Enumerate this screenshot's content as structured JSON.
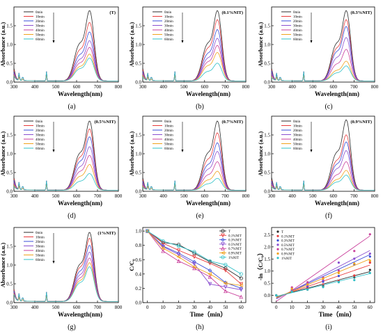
{
  "series_colors": [
    "#2b2b2b",
    "#e8393a",
    "#3a4dd8",
    "#8a4fd0",
    "#c93f9b",
    "#f0a21c",
    "#2fc0c7"
  ],
  "chart_data": [
    {
      "type": "line",
      "panel_label": "(a)",
      "tag": "(T)",
      "xlabel": "Wavelength(nm)",
      "ylabel": "Absorbance (a.u.)",
      "xlim": [
        300,
        800
      ],
      "ylim": [
        0,
        2.0
      ],
      "xticks": [
        300,
        400,
        500,
        600,
        700,
        800
      ],
      "yticks": [
        0.0,
        0.5,
        1.0,
        1.5
      ],
      "legend_position": "top-left",
      "series": [
        {
          "name": "0min",
          "peak": 1.78
        },
        {
          "name": "10min",
          "peak": 1.48
        },
        {
          "name": "20min",
          "peak": 1.24
        },
        {
          "name": "30min",
          "peak": 1.02
        },
        {
          "name": "40min",
          "peak": 0.85
        },
        {
          "name": "50min",
          "peak": 0.68
        },
        {
          "name": "60min",
          "peak": 0.58
        }
      ]
    },
    {
      "type": "line",
      "panel_label": "(b)",
      "tag": "(0.1%NIT)",
      "xlabel": "Wavelength(nm)",
      "ylabel": "Absorbance (a.u.)",
      "xlim": [
        300,
        800
      ],
      "ylim": [
        0,
        2.0
      ],
      "xticks": [
        300,
        400,
        500,
        600,
        700,
        800
      ],
      "yticks": [
        0.0,
        0.5,
        1.0,
        1.5
      ],
      "legend_position": "top-left",
      "series": [
        {
          "name": "0min",
          "peak": 1.78
        },
        {
          "name": "10min",
          "peak": 1.55
        },
        {
          "name": "20min",
          "peak": 1.3
        },
        {
          "name": "30min",
          "peak": 1.08
        },
        {
          "name": "40min",
          "peak": 0.9
        },
        {
          "name": "50min",
          "peak": 0.72
        },
        {
          "name": "60min",
          "peak": 0.45
        }
      ]
    },
    {
      "type": "line",
      "panel_label": "(c)",
      "tag": "(0.3%NIT)",
      "xlabel": "Wavelength(nm)",
      "ylabel": "Absorbance (a.u.)",
      "xlim": [
        300,
        800
      ],
      "ylim": [
        0,
        2.0
      ],
      "xticks": [
        300,
        400,
        500,
        600,
        700,
        800
      ],
      "yticks": [
        0.0,
        0.5,
        1.0,
        1.5
      ],
      "legend_position": "top-left",
      "series": [
        {
          "name": "0min",
          "peak": 1.78
        },
        {
          "name": "10min",
          "peak": 1.55
        },
        {
          "name": "20min",
          "peak": 1.38
        },
        {
          "name": "30min",
          "peak": 1.1
        },
        {
          "name": "40min",
          "peak": 0.8
        },
        {
          "name": "50min",
          "peak": 0.5
        },
        {
          "name": "60min",
          "peak": 0.38
        }
      ]
    },
    {
      "type": "line",
      "panel_label": "(d)",
      "tag": "(0.5%NIT)",
      "xlabel": "Wavelength(nm)",
      "ylabel": "Absorbance (a.u.)",
      "xlim": [
        300,
        800
      ],
      "ylim": [
        0,
        2.0
      ],
      "xticks": [
        300,
        400,
        500,
        600,
        700,
        800
      ],
      "yticks": [
        0.0,
        0.5,
        1.0,
        1.5
      ],
      "legend_position": "top-left",
      "series": [
        {
          "name": "0min",
          "peak": 1.75
        },
        {
          "name": "10min",
          "peak": 1.55
        },
        {
          "name": "20min",
          "peak": 1.35
        },
        {
          "name": "30min",
          "peak": 1.1
        },
        {
          "name": "40min",
          "peak": 0.88
        },
        {
          "name": "50min",
          "peak": 0.65
        },
        {
          "name": "60min",
          "peak": 0.42
        }
      ]
    },
    {
      "type": "line",
      "panel_label": "(e)",
      "tag": "(0.7%NIT)",
      "xlabel": "Wavelength(nm)",
      "ylabel": "Absorbance (a.u.)",
      "xlim": [
        300,
        800
      ],
      "ylim": [
        0,
        2.0
      ],
      "xticks": [
        300,
        400,
        500,
        600,
        700,
        800
      ],
      "yticks": [
        0.0,
        0.5,
        1.0,
        1.5
      ],
      "legend_position": "top-left",
      "series": [
        {
          "name": "0min",
          "peak": 1.75
        },
        {
          "name": "10min",
          "peak": 1.45
        },
        {
          "name": "20min",
          "peak": 1.2
        },
        {
          "name": "30min",
          "peak": 0.98
        },
        {
          "name": "40min",
          "peak": 0.72
        },
        {
          "name": "50min",
          "peak": 0.48
        },
        {
          "name": "60min",
          "peak": 0.3
        }
      ]
    },
    {
      "type": "line",
      "panel_label": "(f)",
      "tag": "(0.9%NIT)",
      "xlabel": "Wavelength(nm)",
      "ylabel": "Absorbance (a.u.)",
      "xlim": [
        300,
        800
      ],
      "ylim": [
        0,
        2.0
      ],
      "xticks": [
        300,
        400,
        500,
        600,
        700,
        800
      ],
      "yticks": [
        0.0,
        0.5,
        1.0,
        1.5
      ],
      "legend_position": "top-left",
      "series": [
        {
          "name": "0min",
          "peak": 1.78
        },
        {
          "name": "10min",
          "peak": 1.4
        },
        {
          "name": "20min",
          "peak": 1.22
        },
        {
          "name": "30min",
          "peak": 1.0
        },
        {
          "name": "40min",
          "peak": 0.72
        },
        {
          "name": "50min",
          "peak": 0.5
        },
        {
          "name": "60min",
          "peak": 0.38
        }
      ]
    },
    {
      "type": "line",
      "panel_label": "(g)",
      "tag": "(1%NIT)",
      "xlabel": "Wavelength(nm)",
      "ylabel": "Absorbance (a.u.)",
      "xlim": [
        300,
        800
      ],
      "ylim": [
        0,
        2.0
      ],
      "xticks": [
        300,
        400,
        500,
        600,
        700,
        800
      ],
      "yticks": [
        0.0,
        0.5,
        1.0,
        1.5
      ],
      "legend_position": "top-left",
      "series": [
        {
          "name": "0min",
          "peak": 1.75
        },
        {
          "name": "10min",
          "peak": 1.6
        },
        {
          "name": "20min",
          "peak": 1.42
        },
        {
          "name": "30min",
          "peak": 1.25
        },
        {
          "name": "40min",
          "peak": 1.1
        },
        {
          "name": "50min",
          "peak": 0.98
        },
        {
          "name": "60min",
          "peak": 0.88
        }
      ]
    },
    {
      "type": "line",
      "panel_label": "(h)",
      "xlabel": "Time（min）",
      "ylabel": "C/C₀",
      "xlim": [
        -3,
        63
      ],
      "ylim": [
        0,
        1.05
      ],
      "xticks": [
        0,
        10,
        20,
        30,
        40,
        50,
        60
      ],
      "yticks": [
        0.0,
        0.2,
        0.4,
        0.6,
        0.8,
        1.0
      ],
      "legend_position": "top-right",
      "markers": [
        "circle",
        "triangle-down",
        "diamond",
        "triangle-down",
        "triangle-up",
        "triangle-left",
        "circle"
      ],
      "x": [
        0,
        10,
        20,
        30,
        40,
        50,
        60
      ],
      "series": [
        {
          "name": "T",
          "values": [
            1.0,
            0.84,
            0.81,
            0.69,
            0.57,
            0.48,
            0.34
          ]
        },
        {
          "name": "0.1%NIT",
          "values": [
            1.0,
            0.83,
            0.73,
            0.64,
            0.55,
            0.45,
            0.26
          ]
        },
        {
          "name": "0.3%NIT",
          "values": [
            1.0,
            0.79,
            0.69,
            0.57,
            0.45,
            0.28,
            0.2
          ]
        },
        {
          "name": "0.5%NIT",
          "values": [
            1.0,
            0.78,
            0.67,
            0.54,
            0.26,
            0.22,
            0.18
          ]
        },
        {
          "name": "0.7%NIT",
          "values": [
            1.0,
            0.72,
            0.58,
            0.48,
            0.36,
            0.16,
            0.08
          ]
        },
        {
          "name": "0.9%NIT",
          "values": [
            1.0,
            0.76,
            0.64,
            0.5,
            0.4,
            0.27,
            0.24
          ]
        },
        {
          "name": "1%NIT",
          "values": [
            1.0,
            0.86,
            0.79,
            0.71,
            0.58,
            0.53,
            0.4
          ]
        }
      ]
    },
    {
      "type": "scatter",
      "panel_label": "(i)",
      "xlabel": "Time（min）",
      "ylabel": "-ln（C/C₀）",
      "xlim": [
        -3,
        63
      ],
      "ylim": [
        -0.3,
        2.8
      ],
      "xticks": [
        0,
        10,
        20,
        30,
        40,
        50,
        60
      ],
      "yticks": [
        0.0,
        0.5,
        1.0,
        1.5,
        2.0,
        2.5
      ],
      "legend_position": "top-left",
      "x": [
        0,
        10,
        20,
        30,
        40,
        50,
        60
      ],
      "series": [
        {
          "name": "T",
          "values": [
            0.0,
            0.17,
            0.24,
            0.38,
            0.55,
            0.74,
            1.05
          ],
          "fit": [
            -0.05,
            0.98
          ]
        },
        {
          "name": "0.1%NIT",
          "values": [
            0.0,
            0.19,
            0.31,
            0.45,
            0.6,
            0.82,
            1.35
          ],
          "fit": [
            -0.08,
            1.25
          ]
        },
        {
          "name": "0.3%NIT",
          "values": [
            0.0,
            0.24,
            0.37,
            0.56,
            0.8,
            1.27,
            1.6
          ],
          "fit": [
            -0.12,
            1.68
          ]
        },
        {
          "name": "0.5%NIT",
          "values": [
            0.0,
            0.25,
            0.4,
            0.62,
            1.35,
            1.51,
            1.72
          ],
          "fit": [
            -0.15,
            1.85
          ]
        },
        {
          "name": "0.7%NIT",
          "values": [
            0.0,
            0.33,
            0.54,
            0.73,
            1.02,
            1.83,
            2.52
          ],
          "fit": [
            -0.25,
            2.45
          ]
        },
        {
          "name": "0.9%NIT",
          "values": [
            0.0,
            0.27,
            0.45,
            0.69,
            0.92,
            1.31,
            1.43
          ],
          "fit": [
            -0.1,
            1.5
          ]
        },
        {
          "name": "1%NIT",
          "values": [
            0.0,
            0.15,
            0.24,
            0.34,
            0.54,
            0.63,
            0.92
          ],
          "fit": [
            -0.05,
            0.9
          ]
        }
      ]
    }
  ]
}
